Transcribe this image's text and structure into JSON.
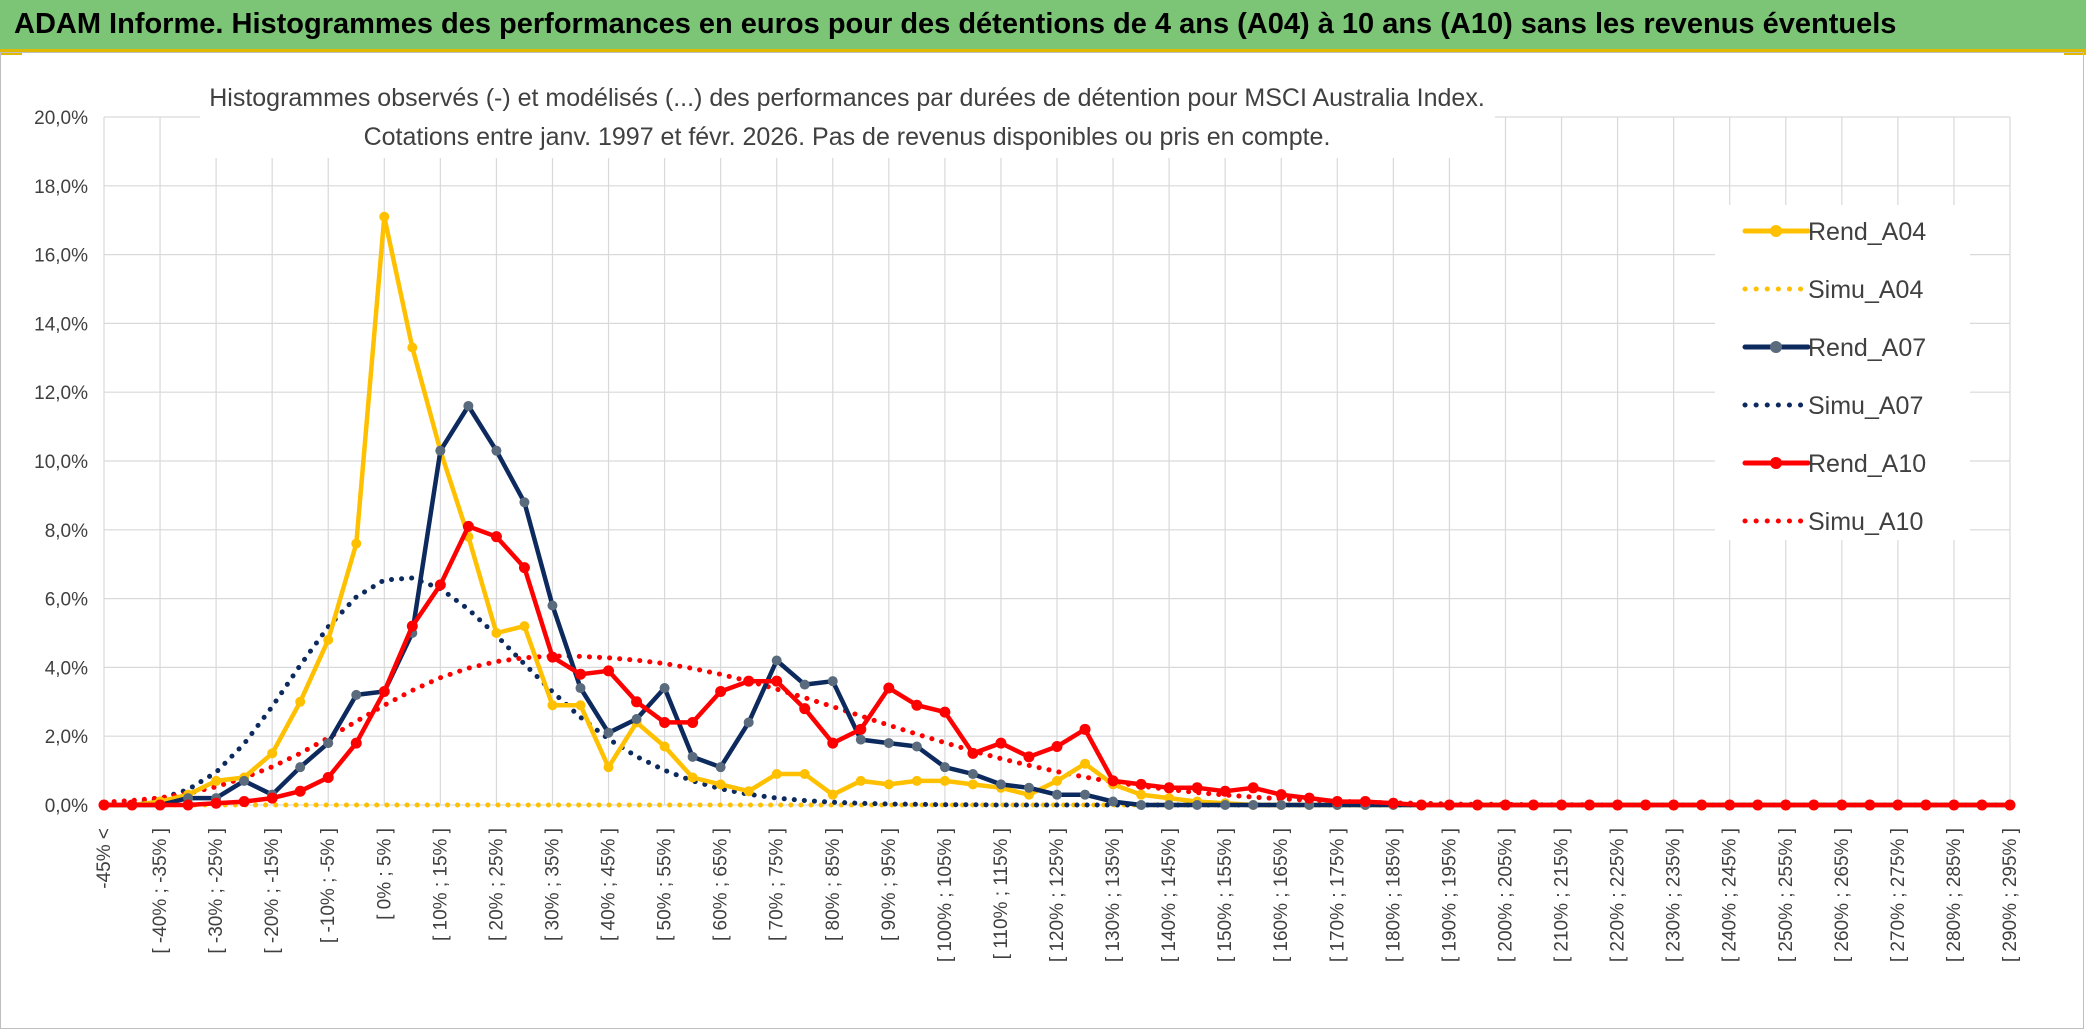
{
  "banner": {
    "title": "ADAM Informe. Histogrammes des performances en euros pour des détentions de 4 ans (A04) à 10 ans (A10) sans les revenus éventuels"
  },
  "colors": {
    "banner": "#7cc576",
    "A04": "#ffc000",
    "A07": "#0d2a5e",
    "A07_marker": "#5a6b7d",
    "A10": "#ff0000",
    "grid": "#d9d9d9",
    "text": "#404040"
  },
  "chart_data": {
    "type": "line",
    "title": "Histogrammes observés (-) et modélisés (...) des performances par durées de détention pour MSCI Australia Index.",
    "subtitle": "Cotations entre janv. 1997 et févr. 2026. Pas de revenus disponibles ou pris en compte.",
    "ylim": [
      0,
      20
    ],
    "y_ticks": [
      "0,0%",
      "2,0%",
      "4,0%",
      "6,0%",
      "8,0%",
      "10,0%",
      "12,0%",
      "14,0%",
      "16,0%",
      "18,0%",
      "20,0%"
    ],
    "x_tick_labels": [
      "-45% <",
      "[ -40% ; -35% ]",
      "[ -30% ; -25% ]",
      "[ -20% ; -15% ]",
      "[ -10% ; -5% ]",
      "[ 0% ; 5% ]",
      "[ 10% ; 15% ]",
      "[ 20% ; 25% ]",
      "[ 30% ; 35% ]",
      "[ 40% ; 45% ]",
      "[ 50% ; 55% ]",
      "[ 60% ; 65% ]",
      "[ 70% ; 75% ]",
      "[ 80% ; 85% ]",
      "[ 90% ; 95% ]",
      "[ 100% ; 105% ]",
      "[ 110% ; 115% ]",
      "[ 120% ; 125% ]",
      "[ 130% ; 135% ]",
      "[ 140% ; 145% ]",
      "[ 150% ; 155% ]",
      "[ 160% ; 165% ]",
      "[ 170% ; 175% ]",
      "[ 180% ; 185% ]",
      "[ 190% ; 195% ]",
      "[ 200% ; 205% ]",
      "[ 210% ; 215% ]",
      "[ 220% ; 225% ]",
      "[ 230% ; 235% ]",
      "[ 240% ; 245% ]",
      "[ 250% ; 255% ]",
      "[ 260% ; 265% ]",
      "[ 270% ; 275% ]",
      "[ 280% ; 285% ]",
      "[ 290% ; 295% ]"
    ],
    "n_categories": 69,
    "series": [
      {
        "name": "Rend_A04",
        "style": "solid",
        "color": "#ffc000",
        "values": [
          0,
          0,
          0.1,
          0.3,
          0.7,
          0.8,
          1.5,
          3.0,
          4.8,
          7.6,
          17.1,
          13.3,
          10.3,
          7.8,
          5.0,
          5.2,
          2.9,
          2.9,
          1.1,
          2.4,
          1.7,
          0.8,
          0.6,
          0.4,
          0.9,
          0.9,
          0.3,
          0.7,
          0.6,
          0.7,
          0.7,
          0.6,
          0.5,
          0.3,
          0.7,
          1.2,
          0.6,
          0.3,
          0.2,
          0.1,
          0.05,
          0,
          0,
          0,
          0,
          0,
          0,
          0,
          0,
          0,
          0,
          0,
          0,
          0,
          0,
          0,
          0,
          0,
          0,
          0,
          0,
          0,
          0,
          0,
          0,
          0,
          0,
          0,
          0
        ]
      },
      {
        "name": "Simu_A04",
        "style": "dotted",
        "color": "#ffc000",
        "values": [
          0,
          0,
          0,
          0,
          0,
          0,
          0,
          0,
          0,
          0,
          0,
          0,
          0,
          0,
          0,
          0,
          0,
          0,
          0,
          0,
          0,
          0,
          0,
          0,
          0,
          0,
          0,
          0,
          0,
          0,
          0,
          0,
          0,
          0,
          0,
          0,
          0,
          0,
          0,
          0,
          0,
          0,
          0,
          0,
          0,
          0,
          0,
          0,
          0,
          0,
          0,
          0,
          0,
          0,
          0,
          0,
          0,
          0,
          0,
          0,
          0,
          0,
          0,
          0,
          0,
          0,
          0,
          0,
          0
        ]
      },
      {
        "name": "Rend_A07",
        "style": "solid",
        "color": "#0d2a5e",
        "values": [
          0,
          0,
          0,
          0.2,
          0.2,
          0.7,
          0.3,
          1.1,
          1.8,
          3.2,
          3.3,
          5.0,
          10.3,
          11.6,
          10.3,
          8.8,
          5.8,
          3.4,
          2.1,
          2.5,
          3.4,
          1.4,
          1.1,
          2.4,
          4.2,
          3.5,
          3.6,
          1.9,
          1.8,
          1.7,
          1.1,
          0.9,
          0.6,
          0.5,
          0.3,
          0.3,
          0.1,
          0,
          0,
          0,
          0,
          0,
          0,
          0,
          0,
          0,
          0,
          0,
          0,
          0,
          0,
          0,
          0,
          0,
          0,
          0,
          0,
          0,
          0,
          0,
          0,
          0,
          0,
          0,
          0,
          0,
          0,
          0,
          0
        ]
      },
      {
        "name": "Simu_A07",
        "style": "dotted",
        "color": "#0d2a5e",
        "values": [
          0.02,
          0.06,
          0.18,
          0.45,
          0.95,
          1.78,
          2.86,
          4.06,
          5.18,
          6.05,
          6.54,
          6.6,
          6.29,
          5.69,
          4.93,
          4.1,
          3.29,
          2.55,
          1.92,
          1.41,
          1.01,
          0.7,
          0.47,
          0.31,
          0.2,
          0.13,
          0.08,
          0.05,
          0.03,
          0.02,
          0.01,
          0.01,
          0,
          0,
          0,
          0,
          0,
          0,
          0,
          0,
          0,
          0,
          0,
          0,
          0,
          0,
          0,
          0,
          0,
          0,
          0,
          0,
          0,
          0,
          0,
          0,
          0,
          0,
          0,
          0,
          0,
          0,
          0,
          0,
          0,
          0,
          0,
          0,
          0
        ]
      },
      {
        "name": "Rend_A10",
        "style": "solid",
        "color": "#ff0000",
        "values": [
          0,
          0,
          0,
          0,
          0.05,
          0.1,
          0.2,
          0.4,
          0.8,
          1.8,
          3.3,
          5.2,
          6.4,
          8.1,
          7.8,
          6.9,
          4.3,
          3.8,
          3.9,
          3.0,
          2.4,
          2.4,
          3.3,
          3.6,
          3.6,
          2.8,
          1.8,
          2.2,
          3.4,
          2.9,
          2.7,
          1.5,
          1.8,
          1.4,
          1.7,
          2.2,
          0.7,
          0.6,
          0.5,
          0.5,
          0.4,
          0.5,
          0.3,
          0.2,
          0.1,
          0.1,
          0.05,
          0,
          0,
          0,
          0,
          0,
          0,
          0,
          0,
          0,
          0,
          0,
          0,
          0,
          0,
          0,
          0,
          0,
          0,
          0,
          0,
          0,
          0
        ]
      },
      {
        "name": "Simu_A10",
        "style": "dotted",
        "color": "#ff0000",
        "values": [
          0.08,
          0.13,
          0.21,
          0.34,
          0.53,
          0.79,
          1.11,
          1.5,
          1.95,
          2.43,
          2.9,
          3.33,
          3.7,
          3.98,
          4.17,
          4.28,
          4.33,
          4.32,
          4.28,
          4.21,
          4.11,
          3.97,
          3.8,
          3.6,
          3.37,
          3.12,
          2.86,
          2.59,
          2.32,
          2.06,
          1.81,
          1.57,
          1.35,
          1.15,
          0.97,
          0.81,
          0.67,
          0.55,
          0.45,
          0.36,
          0.29,
          0.23,
          0.18,
          0.14,
          0.11,
          0.08,
          0.06,
          0.05,
          0.03,
          0.02,
          0.02,
          0.01,
          0.01,
          0.01,
          0,
          0,
          0,
          0,
          0,
          0,
          0,
          0,
          0,
          0,
          0,
          0,
          0,
          0,
          0
        ]
      }
    ],
    "legend_position": "right"
  }
}
